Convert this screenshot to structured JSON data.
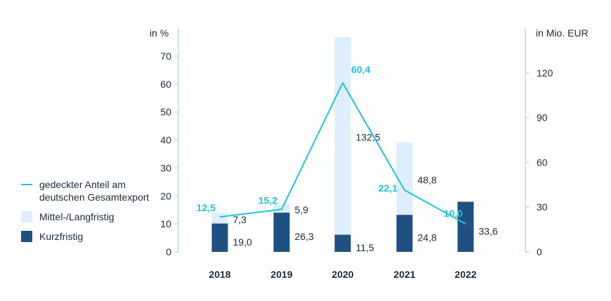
{
  "chart_data": {
    "type": "bar",
    "categories": [
      "2018",
      "2019",
      "2020",
      "2021",
      "2022"
    ],
    "left_axis": {
      "unit_label": "in %",
      "ticks": [
        0,
        10,
        20,
        30,
        40,
        50,
        60,
        70
      ],
      "range": [
        0,
        80
      ]
    },
    "right_axis": {
      "unit_label": "in Mio. EUR",
      "ticks": [
        0,
        30,
        60,
        90,
        120
      ],
      "range": [
        0,
        150
      ]
    },
    "series": [
      {
        "name": "Kurzfristig",
        "axis": "right",
        "stack": "bars",
        "values": [
          19.0,
          26.3,
          11.5,
          24.8,
          33.6
        ],
        "labels": [
          "19,0",
          "26,3",
          "11,5",
          "24,8",
          "33,6"
        ],
        "color": "#1f5081"
      },
      {
        "name": "Mittel-/Langfristig",
        "axis": "right",
        "stack": "bars",
        "values": [
          7.3,
          5.9,
          132.5,
          48.8,
          0
        ],
        "labels": [
          "7,3",
          "5,9",
          "132,5",
          "48,8",
          ""
        ],
        "color": "#deeefc"
      },
      {
        "name": "gedeckter Anteil am deutschen Gesamtexport",
        "axis": "left",
        "type": "line",
        "values": [
          12.5,
          15.2,
          60.4,
          22.1,
          10.0
        ],
        "labels": [
          "12,5",
          "15,2",
          "60,4",
          "22,1",
          "10,0"
        ],
        "color": "#1ec3d9"
      }
    ],
    "legend": {
      "position": "left",
      "items": [
        {
          "label": "gedeckter Anteil am deutschen Gesamtexport",
          "kind": "line",
          "color": "#1ec3d9"
        },
        {
          "label": "Mittel-/Langfristig",
          "kind": "box",
          "color": "#deeefc"
        },
        {
          "label": "Kurzfristig",
          "kind": "box",
          "color": "#1f5081"
        }
      ]
    },
    "axis_color": "#b6dde8"
  }
}
